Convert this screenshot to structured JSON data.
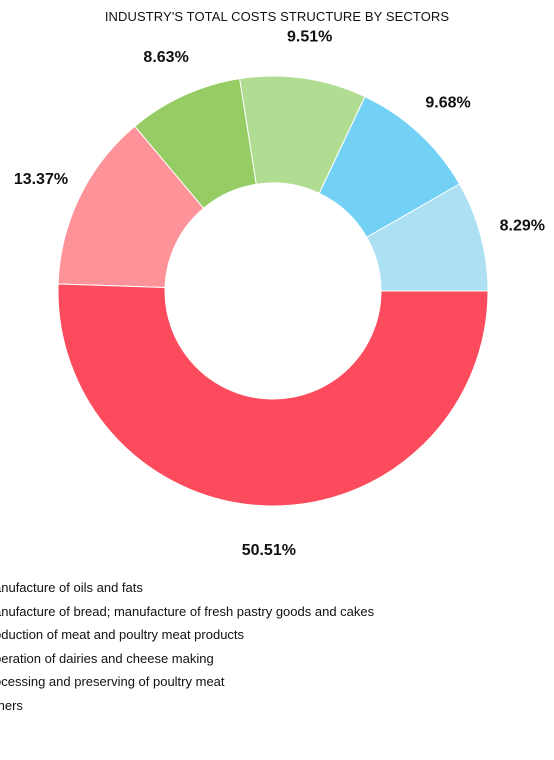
{
  "chart_data": {
    "type": "donut",
    "title": "INDUSTRY'S TOTAL COSTS STRUCTURE BY SECTORS",
    "slices": [
      {
        "label": "Manufacture of oils and fats",
        "value": 8.29,
        "display": "8.29%",
        "color": "#ADE0F2"
      },
      {
        "label": "Manufacture of bread; manufacture of fresh pastry goods and cakes",
        "value": 9.68,
        "display": "9.68%",
        "color": "#74D1F6"
      },
      {
        "label": "Production of meat and poultry meat products",
        "value": 9.51,
        "display": "9.51%",
        "color": "#B0DD91"
      },
      {
        "label": "Operation of dairies and cheese making",
        "value": 8.63,
        "display": "8.63%",
        "color": "#95CC63"
      },
      {
        "label": "Processing and preserving of poultry meat",
        "value": 13.37,
        "display": "13.37%",
        "color": "#FD9399"
      },
      {
        "label": "Others",
        "value": 50.51,
        "display": "50.51%",
        "color": "#FC4B5C"
      }
    ],
    "legend_visible_text": [
      "anufacture of oils and fats",
      "anufacture of bread; manufacture of fresh pastry goods and cakes",
      "oduction of meat and poultry meat products",
      "peration of dairies and cheese making",
      "ocessing and preserving of poultry meat",
      "thers"
    ]
  }
}
